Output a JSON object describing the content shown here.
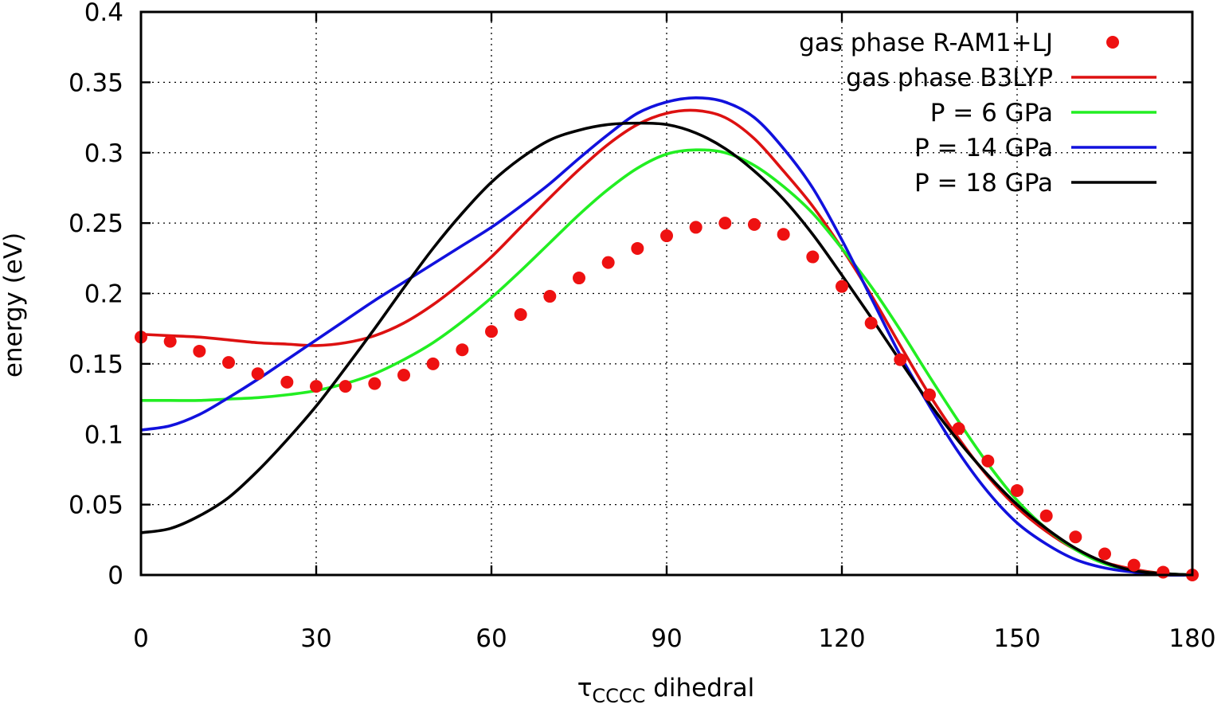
{
  "chart_data": {
    "type": "line",
    "xlabel": "τ",
    "xlabel_subscript": "CCCC",
    "xlabel_suffix": " dihedral",
    "ylabel": "energy (eV)",
    "xlim": [
      0,
      180
    ],
    "ylim": [
      0,
      0.4
    ],
    "x_ticks": [
      0,
      30,
      60,
      90,
      120,
      150,
      180
    ],
    "x_tick_labels": [
      "0",
      "30",
      "60",
      "90",
      "120",
      "150",
      "180"
    ],
    "y_ticks": [
      0,
      0.05,
      0.1,
      0.15,
      0.2,
      0.25,
      0.3,
      0.35,
      0.4
    ],
    "y_tick_labels": [
      "0",
      "0.05",
      "0.1",
      "0.15",
      "0.2",
      "0.25",
      "0.3",
      "0.35",
      "0.4"
    ],
    "grid": true,
    "legend_position": "top-right",
    "series": [
      {
        "name": "gas phase R-AM1+LJ",
        "style": "points",
        "color": "#ee1111",
        "x": [
          0,
          5,
          10,
          15,
          20,
          25,
          30,
          35,
          40,
          45,
          50,
          55,
          60,
          65,
          70,
          75,
          80,
          85,
          90,
          95,
          100,
          105,
          110,
          115,
          120,
          125,
          130,
          135,
          140,
          145,
          150,
          155,
          160,
          165,
          170,
          175,
          180
        ],
        "y": [
          0.169,
          0.166,
          0.159,
          0.151,
          0.143,
          0.137,
          0.134,
          0.134,
          0.136,
          0.142,
          0.15,
          0.16,
          0.173,
          0.185,
          0.198,
          0.211,
          0.222,
          0.232,
          0.241,
          0.247,
          0.25,
          0.249,
          0.242,
          0.226,
          0.205,
          0.179,
          0.153,
          0.128,
          0.104,
          0.081,
          0.06,
          0.042,
          0.027,
          0.015,
          0.007,
          0.002,
          0.0
        ]
      },
      {
        "name": "gas phase B3LYP",
        "style": "line",
        "color": "#dd1111",
        "x": [
          0,
          5,
          10,
          15,
          20,
          25,
          30,
          35,
          40,
          45,
          50,
          55,
          60,
          65,
          70,
          75,
          80,
          85,
          90,
          95,
          100,
          105,
          110,
          115,
          120,
          125,
          130,
          135,
          140,
          145,
          150,
          155,
          160,
          165,
          170,
          175,
          180
        ],
        "y": [
          0.171,
          0.17,
          0.169,
          0.167,
          0.165,
          0.164,
          0.163,
          0.165,
          0.17,
          0.179,
          0.192,
          0.208,
          0.226,
          0.247,
          0.268,
          0.288,
          0.306,
          0.32,
          0.328,
          0.33,
          0.325,
          0.31,
          0.287,
          0.262,
          0.232,
          0.199,
          0.163,
          0.128,
          0.097,
          0.07,
          0.048,
          0.031,
          0.018,
          0.009,
          0.004,
          0.001,
          0.0
        ]
      },
      {
        "name": "P = 6 GPa",
        "style": "line",
        "color": "#22ee22",
        "x": [
          0,
          5,
          10,
          15,
          20,
          25,
          30,
          35,
          40,
          45,
          50,
          55,
          60,
          65,
          70,
          75,
          80,
          85,
          90,
          95,
          100,
          105,
          110,
          115,
          120,
          125,
          130,
          135,
          140,
          145,
          150,
          155,
          160,
          165,
          170,
          175,
          180
        ],
        "y": [
          0.124,
          0.124,
          0.124,
          0.125,
          0.126,
          0.128,
          0.131,
          0.136,
          0.143,
          0.153,
          0.165,
          0.18,
          0.197,
          0.216,
          0.236,
          0.256,
          0.274,
          0.289,
          0.299,
          0.302,
          0.3,
          0.291,
          0.276,
          0.257,
          0.232,
          0.205,
          0.174,
          0.141,
          0.109,
          0.079,
          0.053,
          0.033,
          0.018,
          0.008,
          0.003,
          0.001,
          0.0
        ]
      },
      {
        "name": "P = 14 GPa",
        "style": "line",
        "color": "#1111dd",
        "x": [
          0,
          5,
          10,
          15,
          20,
          25,
          30,
          35,
          40,
          45,
          50,
          55,
          60,
          65,
          70,
          75,
          80,
          85,
          90,
          95,
          100,
          105,
          110,
          115,
          120,
          125,
          130,
          135,
          140,
          145,
          150,
          155,
          160,
          165,
          170,
          175,
          180
        ],
        "y": [
          0.103,
          0.106,
          0.114,
          0.126,
          0.139,
          0.153,
          0.167,
          0.181,
          0.195,
          0.208,
          0.221,
          0.234,
          0.247,
          0.262,
          0.278,
          0.296,
          0.313,
          0.328,
          0.336,
          0.339,
          0.336,
          0.325,
          0.303,
          0.275,
          0.238,
          0.197,
          0.156,
          0.12,
          0.087,
          0.059,
          0.037,
          0.022,
          0.011,
          0.005,
          0.002,
          0.0,
          0.0
        ]
      },
      {
        "name": "P = 18 GPa",
        "style": "line",
        "color": "#000000",
        "x": [
          0,
          5,
          10,
          15,
          20,
          25,
          30,
          35,
          40,
          45,
          50,
          55,
          60,
          65,
          70,
          75,
          80,
          85,
          90,
          95,
          100,
          105,
          110,
          115,
          120,
          125,
          130,
          135,
          140,
          145,
          150,
          155,
          160,
          165,
          170,
          175,
          180
        ],
        "y": [
          0.03,
          0.033,
          0.042,
          0.055,
          0.074,
          0.096,
          0.12,
          0.147,
          0.175,
          0.204,
          0.232,
          0.257,
          0.279,
          0.296,
          0.309,
          0.316,
          0.32,
          0.321,
          0.32,
          0.314,
          0.303,
          0.287,
          0.267,
          0.242,
          0.213,
          0.183,
          0.152,
          0.122,
          0.095,
          0.071,
          0.05,
          0.033,
          0.019,
          0.009,
          0.003,
          0.001,
          0.0
        ]
      }
    ]
  }
}
